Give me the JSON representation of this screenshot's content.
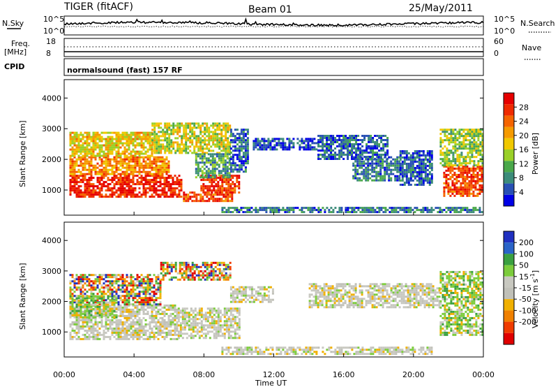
{
  "header": {
    "title": "TIGER (fitACF)",
    "beam": "Beam 01",
    "date": "25/May/2011"
  },
  "strip_panels": {
    "nsky_label": "N.Sky",
    "nsearch_label": "N.Search",
    "noise_ticks_left": [
      "10^5",
      "10^0"
    ],
    "noise_ticks_right": [
      "10^5",
      "10^0"
    ],
    "freq_label": "Freq.",
    "freq_unit": "[MHz]",
    "freq_ticks": [
      "18",
      "8"
    ],
    "nave_label": "Nave",
    "nave_ticks": [
      "60",
      "0"
    ],
    "cpid_label": "CPID",
    "cpid_text": "normalsound (fast) 157 RF"
  },
  "chart_data": [
    {
      "type": "heatmap",
      "name": "power",
      "ylabel": "Slant Range [km]",
      "xlabel": "",
      "ylim": [
        180,
        4600
      ],
      "yticks": [
        "1000",
        "2000",
        "3000",
        "4000"
      ],
      "xlim_hours": [
        0,
        24
      ],
      "colorbar": {
        "label": "Power [dB]",
        "ticks": [
          "4",
          "8",
          "12",
          "16",
          "20",
          "24",
          "28"
        ],
        "range": [
          0,
          32
        ],
        "colors": [
          "#0000e6",
          "#2850b4",
          "#3c8c7a",
          "#4aa84a",
          "#9ad028",
          "#f0c800",
          "#f59a00",
          "#f56400",
          "#ef2a00",
          "#e60000"
        ]
      },
      "regions": [
        {
          "t": [
            0.3,
            6.7
          ],
          "r": [
            780,
            1500
          ],
          "level": 28
        },
        {
          "t": [
            0.3,
            6.0
          ],
          "r": [
            1500,
            2100
          ],
          "level": 22
        },
        {
          "t": [
            0.3,
            5.0
          ],
          "r": [
            2100,
            2900
          ],
          "level": 18
        },
        {
          "t": [
            5.0,
            9.5
          ],
          "r": [
            2200,
            3200
          ],
          "level": 16
        },
        {
          "t": [
            6.8,
            9.6
          ],
          "r": [
            650,
            950
          ],
          "level": 26
        },
        {
          "t": [
            7.8,
            10.0
          ],
          "r": [
            950,
            1500
          ],
          "level": 27
        },
        {
          "t": [
            7.5,
            9.5
          ],
          "r": [
            1400,
            2200
          ],
          "level": 10
        },
        {
          "t": [
            9.5,
            10.5
          ],
          "r": [
            1600,
            3000
          ],
          "level": 6
        },
        {
          "t": [
            10.8,
            14.5
          ],
          "r": [
            2300,
            2700
          ],
          "level": 4
        },
        {
          "t": [
            14.5,
            18.5
          ],
          "r": [
            2000,
            2800
          ],
          "level": 6
        },
        {
          "t": [
            16.5,
            19.2
          ],
          "r": [
            1300,
            2100
          ],
          "level": 7
        },
        {
          "t": [
            19.2,
            21.0
          ],
          "r": [
            1200,
            2300
          ],
          "level": 5
        },
        {
          "t": [
            21.7,
            23.9
          ],
          "r": [
            800,
            1800
          ],
          "level": 26
        },
        {
          "t": [
            21.5,
            23.9
          ],
          "r": [
            1800,
            3000
          ],
          "level": 14
        },
        {
          "t": [
            9.0,
            23.9
          ],
          "r": [
            250,
            450
          ],
          "level": 7
        }
      ]
    },
    {
      "type": "heatmap",
      "name": "velocity",
      "ylabel": "Slant Range [km]",
      "xlabel": "Time UT",
      "ylim": [
        180,
        4600
      ],
      "yticks": [
        "1000",
        "2000",
        "3000",
        "4000"
      ],
      "xticks": [
        "00:00",
        "04:00",
        "08:00",
        "12:00",
        "16:00",
        "20:00",
        "00:00"
      ],
      "xlim_hours": [
        0,
        24
      ],
      "colorbar": {
        "label": "Velocity [m s",
        "label_exponent": "-1",
        "label_close": "]",
        "ticks": [
          "200",
          "100",
          "50",
          "15",
          "-15",
          "-50",
          "-100",
          "-200"
        ],
        "colors": [
          "#2030c0",
          "#2a64c8",
          "#3aa040",
          "#7ccc3c",
          "#c8c8c0",
          "#c0c0b8",
          "#f0b000",
          "#f08000",
          "#f03c00",
          "#e00000"
        ]
      },
      "regions": [
        {
          "t": [
            0.3,
            6.5
          ],
          "r": [
            800,
            1900
          ],
          "cls": "gray"
        },
        {
          "t": [
            0.3,
            5.5
          ],
          "r": [
            1900,
            2900
          ],
          "cls": "mix"
        },
        {
          "t": [
            5.5,
            9.5
          ],
          "r": [
            2700,
            3300
          ],
          "cls": "mix"
        },
        {
          "t": [
            6.5,
            10.0
          ],
          "r": [
            800,
            1800
          ],
          "cls": "gray"
        },
        {
          "t": [
            9.5,
            12.0
          ],
          "r": [
            2000,
            2500
          ],
          "cls": "gray"
        },
        {
          "t": [
            14.0,
            21.5
          ],
          "r": [
            1800,
            2600
          ],
          "cls": "gray"
        },
        {
          "t": [
            21.5,
            23.9
          ],
          "r": [
            900,
            3000
          ],
          "cls": "green"
        },
        {
          "t": [
            9.0,
            21.0
          ],
          "r": [
            280,
            520
          ],
          "cls": "gray"
        },
        {
          "t": [
            0.3,
            3.0
          ],
          "r": [
            1500,
            2200
          ],
          "cls": "green"
        }
      ]
    }
  ]
}
